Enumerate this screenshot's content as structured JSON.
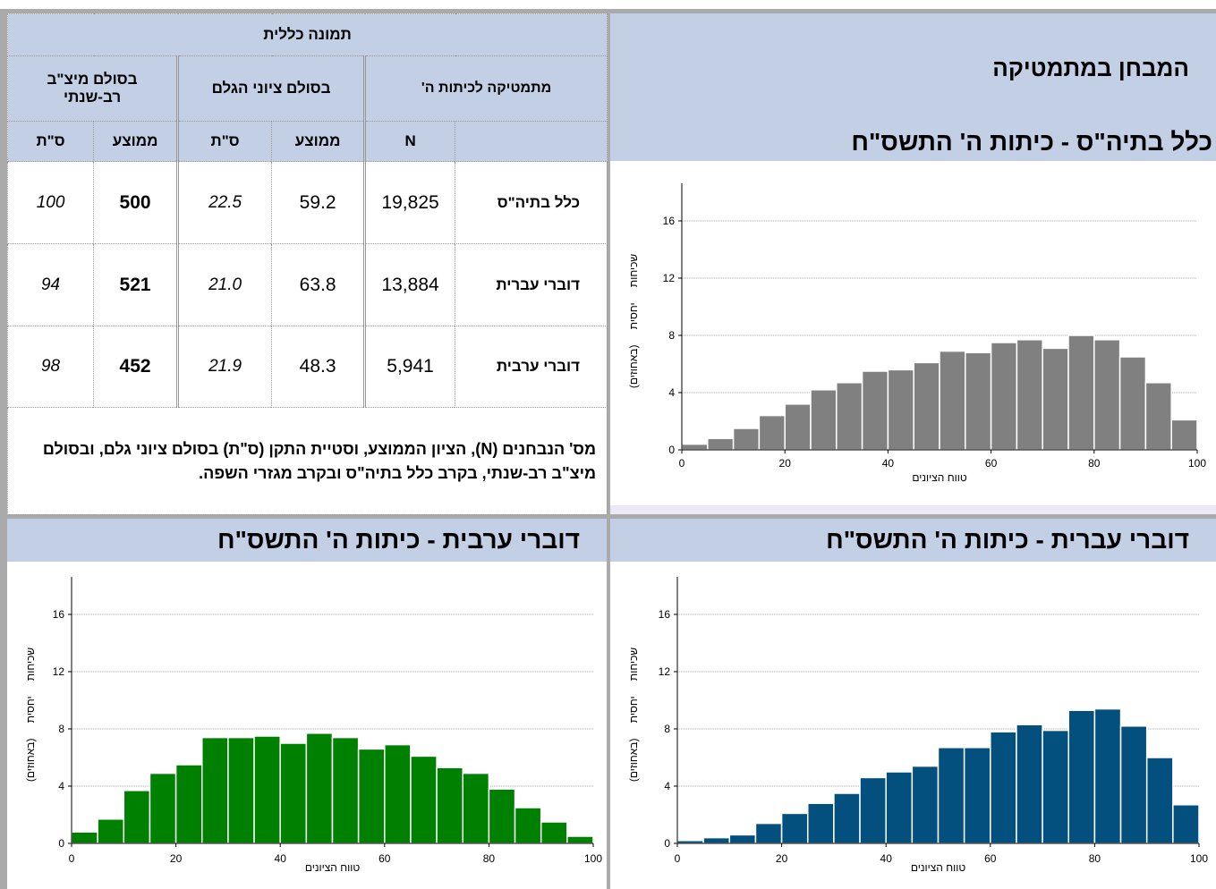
{
  "header": {
    "title": "המבחן במתמטיקה"
  },
  "table": {
    "title": "תמונה כללית",
    "groups": [
      "מתמטיקה לכיתות ה'",
      "בסולם ציוני הגלם",
      "בסולם מיצ\"ב רב-שנתי"
    ],
    "columns": [
      "N",
      "ממוצע",
      "ס\"ת",
      "ממוצע",
      "ס\"ת"
    ],
    "rows": [
      {
        "label": "כלל בתיה\"ס",
        "values": [
          "19,825",
          "59.2",
          "22.5",
          "500",
          "100"
        ]
      },
      {
        "label": "דוברי עברית",
        "values": [
          "13,884",
          "63.8",
          "21.0",
          "521",
          "94"
        ]
      },
      {
        "label": "דוברי ערבית",
        "values": [
          "5,941",
          "48.3",
          "21.9",
          "452",
          "98"
        ]
      }
    ],
    "note": "מס' הנבחנים (N), הציון הממוצע, וסטיית התקן (ס\"ת) בסולם ציוני גלם, ובסולם מיצ\"ב רב-שנתי, בקרב כלל בתיה\"ס ובקרב מגזרי השפה."
  },
  "chart_data": [
    {
      "type": "histogram",
      "title": "כלל בתיה\"ס - כיתות ה' התשס\"ח",
      "xlabel": "טווח הציונים",
      "ylabel": "שכיחות יחסית (באחוזים)",
      "bins": [
        0,
        5,
        10,
        15,
        20,
        25,
        30,
        35,
        40,
        45,
        50,
        55,
        60,
        65,
        70,
        75,
        80,
        85,
        90,
        95,
        100
      ],
      "values": [
        0.4,
        0.8,
        1.5,
        2.4,
        3.2,
        4.2,
        4.7,
        5.5,
        5.6,
        6.1,
        6.9,
        6.8,
        7.5,
        7.7,
        7.1,
        8.0,
        7.7,
        6.5,
        4.7,
        2.1
      ],
      "color": "#808080",
      "xlim": [
        0,
        100
      ],
      "ylim": [
        0,
        18
      ],
      "xticks": [
        0,
        20,
        40,
        60,
        80,
        100
      ],
      "yticks": [
        0,
        4,
        8,
        12,
        16
      ],
      "grid": true
    },
    {
      "type": "histogram",
      "title": "דוברי עברית - כיתות ה' התשס\"ח",
      "xlabel": "טווח הציונים",
      "ylabel": "שכיחות יחסית (באחוזים)",
      "bins": [
        0,
        5,
        10,
        15,
        20,
        25,
        30,
        35,
        40,
        45,
        50,
        55,
        60,
        65,
        70,
        75,
        80,
        85,
        90,
        95,
        100
      ],
      "values": [
        0.2,
        0.4,
        0.6,
        1.4,
        2.1,
        2.8,
        3.5,
        4.6,
        5.0,
        5.4,
        6.7,
        6.7,
        7.8,
        8.3,
        7.9,
        9.3,
        9.4,
        8.2,
        6.0,
        2.7
      ],
      "color": "#03507f",
      "xlim": [
        0,
        100
      ],
      "ylim": [
        0,
        18
      ],
      "xticks": [
        0,
        20,
        40,
        60,
        80,
        100
      ],
      "yticks": [
        0,
        4,
        8,
        12,
        16
      ],
      "grid": true
    },
    {
      "type": "histogram",
      "title": "דוברי ערבית - כיתות ה' התשס\"ח",
      "xlabel": "טווח הציונים",
      "ylabel": "שכיחות יחסית (באחוזים)",
      "bins": [
        0,
        5,
        10,
        15,
        20,
        25,
        30,
        35,
        40,
        45,
        50,
        55,
        60,
        65,
        70,
        75,
        80,
        85,
        90,
        95,
        100
      ],
      "values": [
        0.8,
        1.7,
        3.7,
        4.9,
        5.5,
        7.4,
        7.4,
        7.5,
        7.0,
        7.7,
        7.4,
        6.6,
        6.9,
        6.1,
        5.3,
        4.9,
        3.8,
        2.5,
        1.5,
        0.5
      ],
      "color": "#008000",
      "xlim": [
        0,
        100
      ],
      "ylim": [
        0,
        18
      ],
      "xticks": [
        0,
        20,
        40,
        60,
        80,
        100
      ],
      "yticks": [
        0,
        4,
        8,
        12,
        16
      ],
      "grid": true
    }
  ]
}
